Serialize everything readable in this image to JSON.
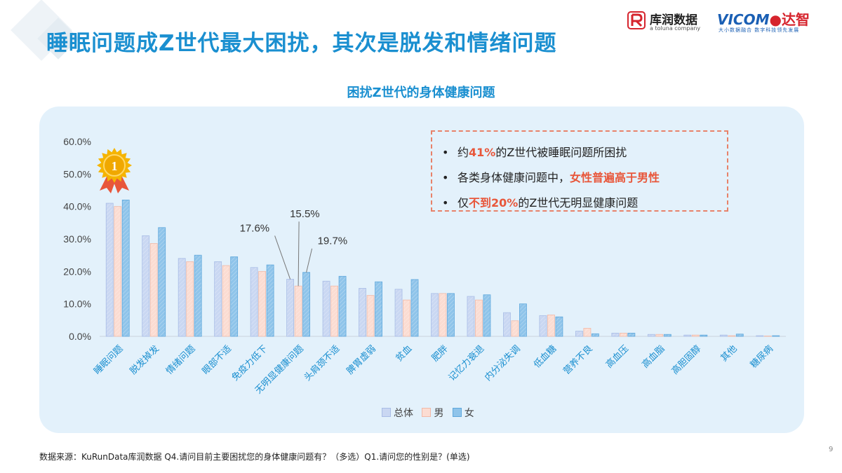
{
  "page": {
    "title": "睡眠问题成Z世代最大困扰，其次是脱发和情绪问题",
    "page_number": "9",
    "footer": "数据来源：KuRunData库润数据 Q4.请问目前主要困扰您的身体健康问题有？（多选）Q1.请问您的性别是？(单选)"
  },
  "brands": {
    "kurun_name": "库润数据",
    "kurun_sub": "a toluna company",
    "vicom_name": "VICOM",
    "vicom_cn": "达智",
    "vicom_sub": "大小数据融合 数字科技领先发展"
  },
  "callout": {
    "line1": {
      "pre": "约",
      "hl": "41%",
      "post": "的Z世代被睡眠问题所困扰"
    },
    "line2": {
      "pre": "各类身体健康问题中，",
      "hl": "女性普遍高于男性",
      "post": ""
    },
    "line3": {
      "pre": "仅",
      "hl": "不到20%",
      "post": "的Z世代无明显健康问题"
    }
  },
  "badge": {
    "text": "1"
  },
  "colors": {
    "total": "#c9d7f2",
    "male": "#fbdcd2",
    "female": "#8fc4ea",
    "title": "#1a8fd0",
    "highlight": "#e8563a",
    "panel": "#e3f1fb"
  },
  "chart_data": {
    "type": "bar",
    "title": "困扰Z世代的身体健康问题",
    "xlabel": "",
    "ylabel": "",
    "ylim": [
      0,
      60
    ],
    "y_ticks": [
      "0.0%",
      "10.0%",
      "20.0%",
      "30.0%",
      "40.0%",
      "50.0%",
      "60.0%"
    ],
    "categories": [
      "睡眠问题",
      "脱发掉发",
      "情绪问题",
      "眼部不适",
      "免疫力低下",
      "无明显健康问题",
      "头肩颈不适",
      "脾胃虚弱",
      "贫血",
      "肥胖",
      "记忆力衰退",
      "内分泌失调",
      "低血糖",
      "营养不良",
      "高血压",
      "高血脂",
      "高胆固醇",
      "其他",
      "糖尿病"
    ],
    "series": [
      {
        "name": "总体",
        "values": [
          41.0,
          31.0,
          24.0,
          23.0,
          21.2,
          17.6,
          17.0,
          14.8,
          14.5,
          13.2,
          12.3,
          7.3,
          6.4,
          1.6,
          1.0,
          0.6,
          0.4,
          0.4,
          0.2
        ]
      },
      {
        "name": "男",
        "values": [
          40.0,
          28.6,
          23.0,
          21.8,
          20.0,
          15.5,
          15.5,
          12.6,
          11.2,
          13.2,
          11.2,
          4.8,
          6.6,
          2.5,
          1.0,
          0.6,
          0.4,
          0.2,
          0.1
        ]
      },
      {
        "name": "女",
        "values": [
          42.0,
          33.5,
          25.0,
          24.5,
          22.0,
          19.7,
          18.5,
          16.8,
          17.5,
          13.2,
          12.8,
          10.0,
          6.0,
          0.8,
          1.0,
          0.6,
          0.4,
          0.7,
          0.2
        ]
      }
    ],
    "data_labels": [
      {
        "category": "无明显健康问题",
        "series": "总体",
        "text": "17.6%"
      },
      {
        "category": "无明显健康问题",
        "series": "男",
        "text": "15.5%"
      },
      {
        "category": "无明显健康问题",
        "series": "女",
        "text": "19.7%"
      }
    ],
    "legend": "bottom",
    "grid": false
  }
}
